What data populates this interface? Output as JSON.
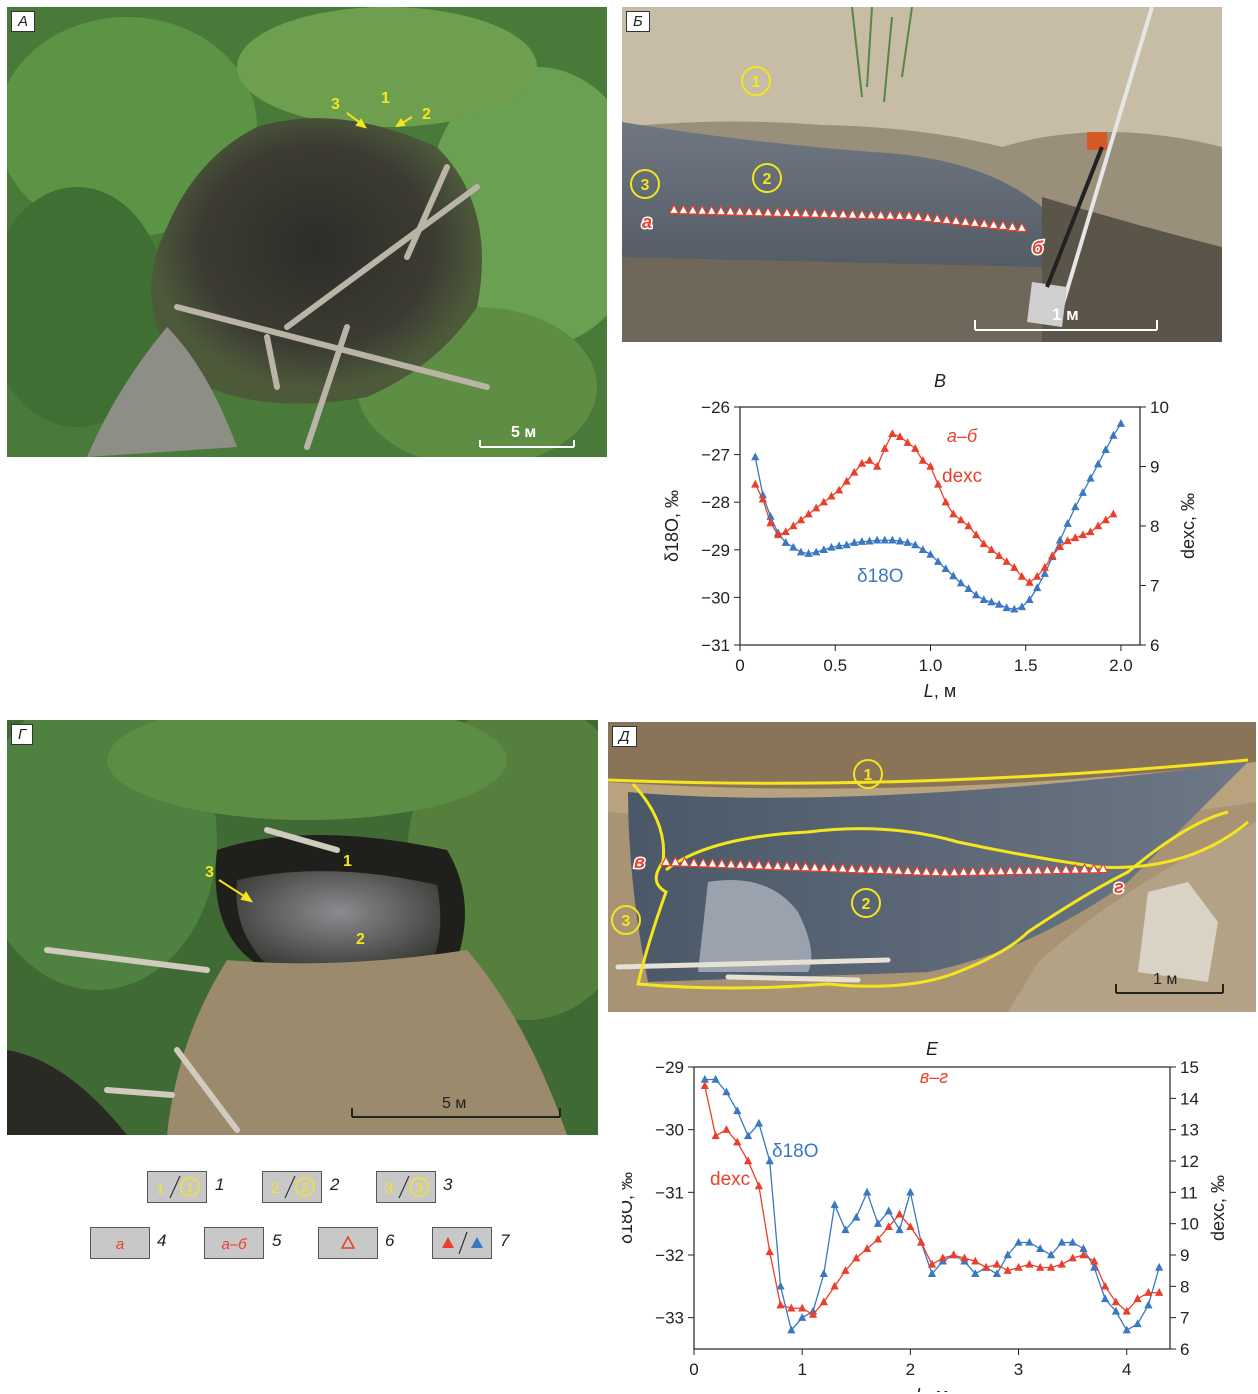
{
  "panels": {
    "a": {
      "label": "А",
      "markers": [
        "3",
        "1",
        "2"
      ],
      "scale": "5 м"
    },
    "b": {
      "label": "Б",
      "circles": [
        "1",
        "2",
        "3"
      ],
      "point_start": "а",
      "point_end": "б",
      "scale": "1 м"
    },
    "d_photo": {
      "label": "Г",
      "markers": [
        "3",
        "1",
        "2"
      ],
      "scale": "5 м"
    },
    "e_photo": {
      "label": "Д",
      "circles": [
        "1",
        "2",
        "3"
      ],
      "point_start": "в",
      "point_end": "г",
      "scale": "1 м"
    }
  },
  "chart_data": [
    {
      "type": "line",
      "panel_label": "В",
      "section_label": "а–б",
      "xlabel_var": "L",
      "xlabel_unit": ", м",
      "ylabel_left": "δ18O, ‰",
      "ylabel_right": "dexc, ‰",
      "xlim": [
        0,
        2.1
      ],
      "ylim_left": [
        -31,
        -26
      ],
      "ylim_right": [
        6,
        10
      ],
      "x_ticks": [
        "0",
        "0.5",
        "1.0",
        "1.5",
        "2.0"
      ],
      "y_left_ticks": [
        "−26",
        "−27",
        "−28",
        "−29",
        "−30",
        "−31"
      ],
      "y_right_ticks": [
        "10",
        "9",
        "8",
        "7",
        "6"
      ],
      "series": [
        {
          "name": "δ18O",
          "axis": "left",
          "color": "#3a78c2",
          "x": [
            0.08,
            0.12,
            0.16,
            0.2,
            0.24,
            0.28,
            0.32,
            0.36,
            0.4,
            0.44,
            0.48,
            0.52,
            0.56,
            0.6,
            0.64,
            0.68,
            0.72,
            0.76,
            0.8,
            0.84,
            0.88,
            0.92,
            0.96,
            1.0,
            1.04,
            1.08,
            1.12,
            1.16,
            1.2,
            1.24,
            1.28,
            1.32,
            1.36,
            1.4,
            1.44,
            1.48,
            1.52,
            1.56,
            1.6,
            1.64,
            1.68,
            1.72,
            1.76,
            1.8,
            1.84,
            1.88,
            1.92,
            1.96,
            2.0
          ],
          "y": [
            -27.05,
            -27.85,
            -28.3,
            -28.65,
            -28.85,
            -28.95,
            -29.05,
            -29.08,
            -29.05,
            -29.0,
            -28.95,
            -28.92,
            -28.9,
            -28.85,
            -28.83,
            -28.82,
            -28.8,
            -28.8,
            -28.8,
            -28.82,
            -28.85,
            -28.9,
            -29.0,
            -29.1,
            -29.25,
            -29.4,
            -29.55,
            -29.7,
            -29.82,
            -29.95,
            -30.05,
            -30.1,
            -30.15,
            -30.22,
            -30.25,
            -30.2,
            -30.05,
            -29.8,
            -29.5,
            -29.15,
            -28.8,
            -28.45,
            -28.1,
            -27.8,
            -27.5,
            -27.2,
            -26.9,
            -26.6,
            -26.35
          ]
        },
        {
          "name": "dexc",
          "axis": "right",
          "color": "#e8402c",
          "x": [
            0.08,
            0.12,
            0.16,
            0.2,
            0.24,
            0.28,
            0.32,
            0.36,
            0.4,
            0.44,
            0.48,
            0.52,
            0.56,
            0.6,
            0.64,
            0.68,
            0.72,
            0.76,
            0.8,
            0.84,
            0.88,
            0.92,
            0.96,
            1.0,
            1.04,
            1.08,
            1.12,
            1.16,
            1.2,
            1.24,
            1.28,
            1.32,
            1.36,
            1.4,
            1.44,
            1.48,
            1.52,
            1.56,
            1.6,
            1.64,
            1.68,
            1.72,
            1.76,
            1.8,
            1.84,
            1.88,
            1.92,
            1.96
          ],
          "y": [
            8.7,
            8.45,
            8.05,
            7.85,
            7.9,
            8.0,
            8.1,
            8.2,
            8.3,
            8.4,
            8.5,
            8.6,
            8.75,
            8.9,
            9.05,
            9.1,
            9.0,
            9.3,
            9.55,
            9.5,
            9.4,
            9.3,
            9.1,
            9.0,
            8.7,
            8.4,
            8.2,
            8.1,
            8.0,
            7.85,
            7.7,
            7.6,
            7.5,
            7.4,
            7.3,
            7.15,
            7.05,
            7.15,
            7.3,
            7.5,
            7.65,
            7.75,
            7.8,
            7.85,
            7.9,
            8.0,
            8.1,
            8.2
          ]
        }
      ],
      "annotations": {
        "d18o_label": "δ18O",
        "dexc_label": "dexc"
      }
    },
    {
      "type": "line",
      "panel_label": "Е",
      "section_label": "в–г",
      "xlabel_var": "L",
      "xlabel_unit": ", м",
      "ylabel_left": "δ18O, ‰",
      "ylabel_right": "dexc, ‰",
      "xlim": [
        0,
        4.4
      ],
      "ylim_left": [
        -33.5,
        -29
      ],
      "ylim_right": [
        6,
        15
      ],
      "x_ticks": [
        "0",
        "1",
        "2",
        "3",
        "4"
      ],
      "y_left_ticks": [
        "−29",
        "−30",
        "−31",
        "−32",
        "−33"
      ],
      "y_right_ticks": [
        "15",
        "14",
        "13",
        "12",
        "11",
        "10",
        "9",
        "8",
        "7",
        "6"
      ],
      "series": [
        {
          "name": "δ18O",
          "axis": "left",
          "color": "#3a78c2",
          "x": [
            0.1,
            0.2,
            0.3,
            0.4,
            0.5,
            0.6,
            0.7,
            0.8,
            0.9,
            1.0,
            1.1,
            1.2,
            1.3,
            1.4,
            1.5,
            1.6,
            1.7,
            1.8,
            1.9,
            2.0,
            2.1,
            2.2,
            2.3,
            2.4,
            2.5,
            2.6,
            2.7,
            2.8,
            2.9,
            3.0,
            3.1,
            3.2,
            3.3,
            3.4,
            3.5,
            3.6,
            3.7,
            3.8,
            3.9,
            4.0,
            4.1,
            4.2,
            4.3
          ],
          "y": [
            -29.2,
            -29.2,
            -29.4,
            -29.7,
            -30.1,
            -29.9,
            -30.5,
            -32.5,
            -33.2,
            -33.0,
            -32.9,
            -32.3,
            -31.2,
            -31.6,
            -31.4,
            -31.0,
            -31.5,
            -31.3,
            -31.6,
            -31.0,
            -31.8,
            -32.3,
            -32.1,
            -32.0,
            -32.1,
            -32.3,
            -32.2,
            -32.3,
            -32.0,
            -31.8,
            -31.8,
            -31.9,
            -32.0,
            -31.8,
            -31.8,
            -31.9,
            -32.2,
            -32.7,
            -32.9,
            -33.2,
            -33.1,
            -32.8,
            -32.2
          ]
        },
        {
          "name": "dexc",
          "axis": "right",
          "color": "#e8402c",
          "x": [
            0.1,
            0.2,
            0.3,
            0.4,
            0.5,
            0.6,
            0.7,
            0.8,
            0.9,
            1.0,
            1.1,
            1.2,
            1.3,
            1.4,
            1.5,
            1.6,
            1.7,
            1.8,
            1.9,
            2.0,
            2.1,
            2.2,
            2.3,
            2.4,
            2.5,
            2.6,
            2.7,
            2.8,
            2.9,
            3.0,
            3.1,
            3.2,
            3.3,
            3.4,
            3.5,
            3.6,
            3.7,
            3.8,
            3.9,
            4.0,
            4.1,
            4.2,
            4.3
          ],
          "y": [
            14.4,
            12.8,
            13.0,
            12.6,
            12.0,
            11.2,
            9.1,
            7.4,
            7.3,
            7.3,
            7.1,
            7.5,
            8.0,
            8.5,
            8.9,
            9.2,
            9.5,
            9.9,
            10.3,
            9.9,
            9.4,
            8.7,
            8.9,
            9.0,
            8.9,
            8.8,
            8.6,
            8.7,
            8.5,
            8.6,
            8.7,
            8.6,
            8.6,
            8.7,
            8.9,
            9.0,
            8.8,
            8.0,
            7.5,
            7.2,
            7.6,
            7.8,
            7.8
          ]
        }
      ],
      "annotations": {
        "d18o_label": "δ18O",
        "dexc_label": "dexc"
      }
    }
  ],
  "legend": {
    "items": [
      {
        "num": "1",
        "text": "1"
      },
      {
        "num": "2",
        "text": "2"
      },
      {
        "num": "3",
        "text": "3"
      },
      {
        "num": "4",
        "text": "а"
      },
      {
        "num": "5",
        "text": "а–б"
      },
      {
        "num": "6",
        "text": "△"
      },
      {
        "num": "7",
        "text": "▲▲"
      }
    ]
  }
}
